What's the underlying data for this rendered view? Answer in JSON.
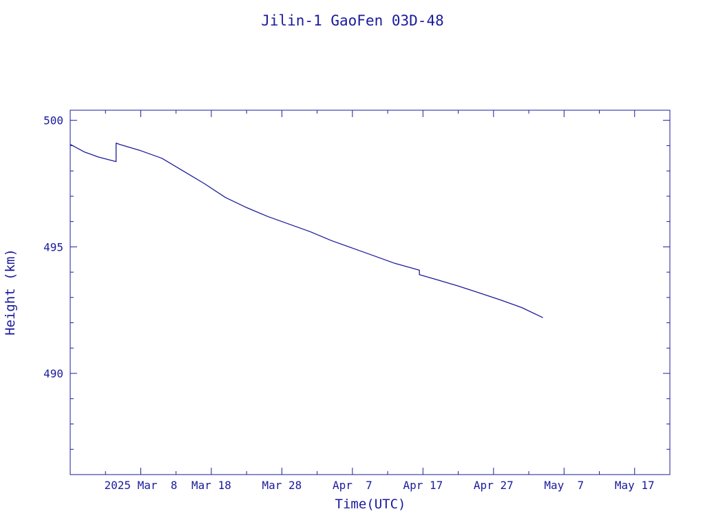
{
  "chart_data": {
    "type": "line",
    "title": "Jilin-1 GaoFen 03D-48",
    "xlabel": "Time(UTC)",
    "ylabel": "Height (km)",
    "x_tick_labels": [
      "2025 Mar  8",
      "Mar 18",
      "Mar 28",
      "Apr  7",
      "Apr 17",
      "Apr 27",
      "May  7",
      "May 17"
    ],
    "x_ticks": [
      "2025-03-08",
      "2025-03-18",
      "2025-03-28",
      "2025-04-07",
      "2025-04-17",
      "2025-04-27",
      "2025-05-07",
      "2025-05-17"
    ],
    "xlim": [
      "2025-02-26",
      "2025-05-22"
    ],
    "ylim": [
      486,
      500.4
    ],
    "y_tick_labels": [
      "500",
      "495",
      "490"
    ],
    "y_ticks": [
      500,
      495,
      490
    ],
    "y_minor_step": 1,
    "x_minor_step_days": 5,
    "line_color": "#1a1a9c",
    "series": [
      {
        "x": [
          "2025-02-26",
          "2025-02-28",
          "2025-03-02",
          "2025-03-04T12:00",
          "2025-03-04T12:01",
          "2025-03-05",
          "2025-03-08",
          "2025-03-11",
          "2025-03-14",
          "2025-03-17",
          "2025-03-20",
          "2025-03-23",
          "2025-03-26",
          "2025-03-29",
          "2025-04-01",
          "2025-04-04",
          "2025-04-07",
          "2025-04-10",
          "2025-04-13",
          "2025-04-16T12:00",
          "2025-04-16T12:01",
          "2025-04-19",
          "2025-04-22",
          "2025-04-25",
          "2025-04-28",
          "2025-05-01",
          "2025-05-04"
        ],
        "y": [
          499.05,
          498.75,
          498.55,
          498.37,
          499.1,
          499.05,
          498.8,
          498.5,
          498.0,
          497.5,
          496.95,
          496.55,
          496.2,
          495.9,
          495.6,
          495.25,
          494.95,
          494.65,
          494.35,
          494.08,
          493.9,
          493.7,
          493.45,
          493.18,
          492.9,
          492.6,
          492.2
        ]
      }
    ]
  }
}
